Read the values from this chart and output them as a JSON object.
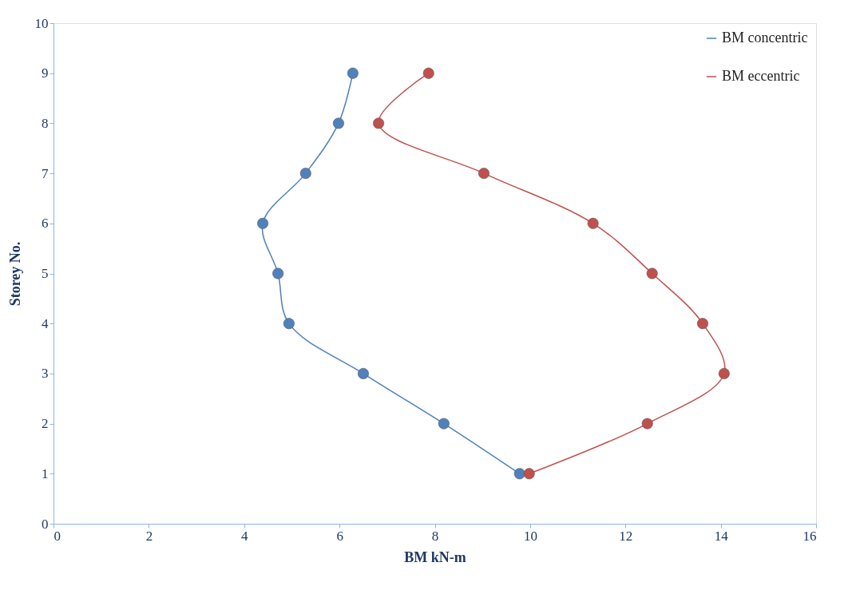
{
  "chart_data": {
    "type": "line",
    "xlabel": "BM kN-m",
    "ylabel": "Storey No.",
    "xlim": [
      0,
      16
    ],
    "xticks": [
      0,
      2,
      4,
      6,
      8,
      10,
      12,
      14,
      16
    ],
    "ylim": [
      0,
      10
    ],
    "yticks": [
      0,
      1,
      2,
      3,
      4,
      5,
      6,
      7,
      8,
      9,
      10
    ],
    "grid": false,
    "legend": "top right",
    "marker": "circle",
    "line_style": "solid",
    "series": [
      {
        "name": "BM concentric",
        "color": "#4f81bd",
        "x": [
          9.78,
          8.19,
          6.5,
          4.94,
          4.71,
          4.39,
          5.29,
          5.98,
          6.28
        ],
        "values": [
          1,
          2,
          3,
          4,
          5,
          6,
          7,
          8,
          9
        ]
      },
      {
        "name": "BM eccentric",
        "color": "#c0504d",
        "x": [
          9.98,
          12.46,
          14.07,
          13.62,
          12.56,
          11.32,
          9.03,
          6.82,
          7.87
        ],
        "values": [
          1,
          2,
          3,
          4,
          5,
          6,
          7,
          8,
          9
        ]
      }
    ]
  }
}
